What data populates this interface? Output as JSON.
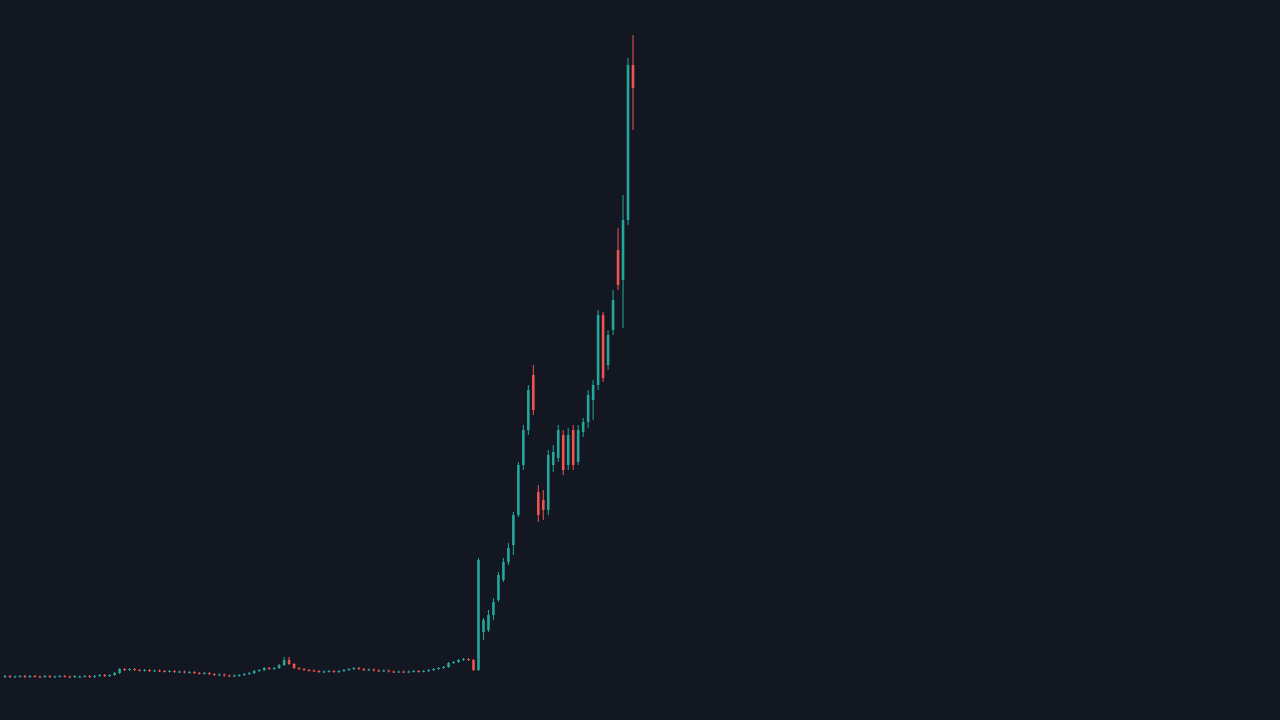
{
  "chart_data": {
    "type": "candlestick",
    "up_color": "#26a69a",
    "down_color": "#ef5350",
    "background": "#131722",
    "ylim": [
      0,
      720
    ],
    "open": [
      43,
      44,
      43,
      43.5,
      44,
      43,
      44,
      43.5,
      43,
      44,
      43,
      43.5,
      44,
      43.5,
      43,
      43,
      43.5,
      44,
      43,
      44,
      45,
      44,
      45,
      47,
      51,
      50,
      51,
      50,
      49.5,
      50,
      49,
      49.5,
      49,
      48.5,
      49,
      48,
      48.5,
      47.5,
      48,
      47,
      46.5,
      47,
      46,
      45,
      45.5,
      44.5,
      44,
      44.5,
      45,
      46,
      47,
      49,
      50,
      52,
      51,
      52,
      55,
      60,
      56,
      52,
      51,
      50,
      49.5,
      49,
      48,
      48.5,
      49,
      48,
      49,
      50,
      51,
      52,
      51,
      50,
      50.5,
      49.5,
      49,
      49.5,
      48.5,
      48,
      48.5,
      48,
      48.5,
      49,
      48.5,
      49,
      50,
      51,
      52,
      53,
      57,
      58,
      60,
      61,
      60,
      50,
      88,
      90,
      105,
      120,
      140,
      158,
      175,
      205,
      255,
      290,
      345,
      228,
      220,
      210,
      255,
      262,
      285,
      255,
      290,
      258,
      288,
      298,
      320,
      335,
      405,
      355,
      390,
      470,
      440,
      500,
      655
    ],
    "high": [
      45,
      45,
      44.5,
      45,
      45,
      45,
      45,
      44.5,
      45,
      45,
      44.5,
      45,
      45,
      44.5,
      45,
      44.5,
      45,
      45,
      45,
      46,
      46,
      46,
      48,
      52,
      52,
      52,
      52,
      51,
      51,
      51,
      50.5,
      50.5,
      50,
      50,
      50,
      49.5,
      49.5,
      49,
      49,
      48,
      48,
      48,
      47,
      46.5,
      46.5,
      45.5,
      45.5,
      46,
      47,
      48,
      50,
      51,
      53,
      53,
      53,
      56,
      63,
      63,
      57,
      53,
      52,
      51,
      50.5,
      50,
      49.5,
      50,
      50,
      50,
      51,
      52,
      53,
      53,
      52,
      51.5,
      51.5,
      50.5,
      50.5,
      50.5,
      49.5,
      49.5,
      49.5,
      49.5,
      50,
      50,
      50,
      51,
      52,
      53,
      54,
      58,
      59,
      61,
      62,
      62,
      61,
      162,
      102,
      110,
      122,
      148,
      162,
      177,
      208,
      258,
      295,
      335,
      355,
      235,
      230,
      270,
      275,
      295,
      290,
      292,
      295,
      295,
      302,
      330,
      340,
      410,
      408,
      390,
      430,
      492,
      525,
      662,
      685
    ],
    "low": [
      42,
      42,
      42,
      42.5,
      42,
      42,
      42.5,
      42,
      42,
      42,
      42,
      42.5,
      42.5,
      42,
      42,
      42,
      42.5,
      42,
      42,
      43,
      43,
      43,
      44,
      46,
      49,
      49,
      49,
      48.5,
      48.5,
      48,
      48,
      48,
      47.5,
      47.5,
      47,
      47,
      46.5,
      46.5,
      46,
      45.5,
      45.5,
      45,
      44,
      44,
      43.5,
      43,
      43,
      43.5,
      44,
      45,
      46,
      48,
      49,
      50,
      50,
      51,
      54,
      55,
      51,
      50,
      49,
      48.5,
      48,
      47,
      47,
      47.5,
      47,
      47,
      48,
      49,
      50,
      50,
      49,
      49,
      48.5,
      48,
      48,
      47.5,
      47,
      47,
      47,
      47,
      47.5,
      47.5,
      47.5,
      48,
      49,
      50,
      51,
      52,
      56,
      57,
      59,
      59,
      49,
      49,
      80,
      88,
      100,
      118,
      138,
      155,
      165,
      203,
      250,
      285,
      305,
      198,
      200,
      205,
      248,
      258,
      245,
      250,
      250,
      255,
      283,
      292,
      300,
      330,
      338,
      350,
      385,
      430,
      392,
      495,
      590
    ],
    "close": [
      44,
      43,
      43.5,
      44,
      43,
      44,
      43.5,
      43,
      44,
      43,
      43.5,
      44,
      43.5,
      43,
      44,
      43.5,
      44,
      43,
      44,
      45,
      44,
      45,
      47,
      51,
      50,
      51,
      50,
      49.5,
      50,
      49,
      49.5,
      49,
      48.5,
      49,
      48,
      48.5,
      47.5,
      48,
      47,
      46.5,
      47,
      46,
      45,
      45.5,
      44.5,
      44,
      44.5,
      45,
      46,
      47,
      49,
      50,
      52,
      51,
      52,
      55,
      60,
      56,
      52,
      51,
      50,
      49.5,
      49,
      48,
      48.5,
      49,
      48,
      49,
      50,
      51,
      52,
      51,
      50,
      50.5,
      49.5,
      49,
      49.5,
      48.5,
      48,
      48.5,
      48,
      48.5,
      49,
      48.5,
      49,
      50,
      51,
      52,
      53,
      57,
      58,
      60,
      61,
      60,
      50,
      160,
      100,
      105,
      118,
      145,
      158,
      172,
      205,
      255,
      290,
      330,
      310,
      205,
      210,
      265,
      268,
      290,
      250,
      285,
      255,
      290,
      298,
      325,
      335,
      405,
      342,
      385,
      420,
      435,
      500,
      655,
      632
    ]
  }
}
